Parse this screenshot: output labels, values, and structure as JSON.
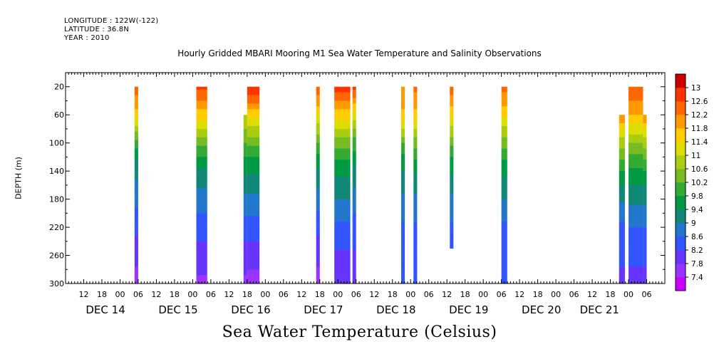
{
  "header": {
    "longitude": "LONGITUDE : 122W(-122)",
    "latitude": "LATITUDE : 36.8N",
    "year": "YEAR : 2010"
  },
  "chart_data": {
    "type": "heatmap",
    "title": "Hourly Gridded MBARI Mooring M1 Sea Water Temperature and Salinity Observations",
    "xlabel": "",
    "ylabel": "DEPTH (m)",
    "colorbar_label": "Sea Water Temperature (Celsius)",
    "y_axis": {
      "range": [
        0,
        300
      ],
      "inverted": true,
      "ticks": [
        20,
        60,
        100,
        140,
        180,
        220,
        260,
        300
      ]
    },
    "x_axis": {
      "start": "DEC 13 06:00",
      "end": "DEC 21 12:00",
      "hour_ticks": [
        {
          "day": 13.5,
          "label": "12"
        },
        {
          "day": 13.75,
          "label": "18"
        },
        {
          "day": 14.0,
          "label": "00"
        },
        {
          "day": 14.25,
          "label": "06"
        },
        {
          "day": 14.5,
          "label": "12"
        },
        {
          "day": 14.75,
          "label": "18"
        },
        {
          "day": 15.0,
          "label": "00"
        },
        {
          "day": 15.25,
          "label": "06"
        },
        {
          "day": 15.5,
          "label": "12"
        },
        {
          "day": 15.75,
          "label": "18"
        },
        {
          "day": 16.0,
          "label": "00"
        },
        {
          "day": 16.25,
          "label": "06"
        },
        {
          "day": 16.5,
          "label": "12"
        },
        {
          "day": 16.75,
          "label": "18"
        },
        {
          "day": 17.0,
          "label": "00"
        },
        {
          "day": 17.25,
          "label": "06"
        },
        {
          "day": 17.5,
          "label": "12"
        },
        {
          "day": 17.75,
          "label": "18"
        },
        {
          "day": 18.0,
          "label": "00"
        },
        {
          "day": 18.25,
          "label": "06"
        },
        {
          "day": 18.5,
          "label": "12"
        },
        {
          "day": 18.75,
          "label": "18"
        },
        {
          "day": 19.0,
          "label": "00"
        },
        {
          "day": 19.25,
          "label": "06"
        },
        {
          "day": 19.5,
          "label": "12"
        },
        {
          "day": 19.75,
          "label": "18"
        },
        {
          "day": 20.0,
          "label": "00"
        },
        {
          "day": 20.25,
          "label": "06"
        },
        {
          "day": 20.5,
          "label": "12"
        },
        {
          "day": 20.75,
          "label": "18"
        },
        {
          "day": 21.0,
          "label": "00"
        },
        {
          "day": 21.25,
          "label": "06"
        }
      ],
      "day_labels": [
        {
          "day": 13.8,
          "label": "DEC 14"
        },
        {
          "day": 14.8,
          "label": "DEC 15"
        },
        {
          "day": 15.8,
          "label": "DEC 16"
        },
        {
          "day": 16.8,
          "label": "DEC 17"
        },
        {
          "day": 17.8,
          "label": "DEC 18"
        },
        {
          "day": 18.8,
          "label": "DEC 19"
        },
        {
          "day": 19.8,
          "label": "DEC 20"
        },
        {
          "day": 20.6,
          "label": "DEC 21"
        }
      ]
    },
    "colorbar": {
      "levels": [
        "7.4",
        "7.8",
        "8.2",
        "8.6",
        "9",
        "9.4",
        "9.8",
        "10.2",
        "10.6",
        "11",
        "11.4",
        "11.8",
        "12.2",
        "12.6",
        "13"
      ],
      "colors": [
        "#cc00ff",
        "#9933ff",
        "#6633ff",
        "#3355ff",
        "#2277cc",
        "#118877",
        "#009944",
        "#33aa33",
        "#77bb22",
        "#aacc11",
        "#dddd00",
        "#ffcc00",
        "#ff9900",
        "#ff6600",
        "#ff3300",
        "#cc0000"
      ]
    },
    "columns": [
      {
        "start": 14.2,
        "end": 14.25,
        "depth_top": 20,
        "depth_bottom": 300,
        "profile": [
          [
            20,
            12.4
          ],
          [
            40,
            12.0
          ],
          [
            60,
            11.6
          ],
          [
            80,
            10.8
          ],
          [
            100,
            10.0
          ],
          [
            130,
            9.2
          ],
          [
            170,
            8.8
          ],
          [
            210,
            8.4
          ],
          [
            250,
            8.0
          ],
          [
            300,
            7.6
          ]
        ]
      },
      {
        "start": 15.05,
        "end": 15.2,
        "depth_top": 20,
        "depth_bottom": 300,
        "profile": [
          [
            20,
            12.7
          ],
          [
            40,
            12.2
          ],
          [
            60,
            11.6
          ],
          [
            80,
            11.0
          ],
          [
            100,
            10.3
          ],
          [
            130,
            9.5
          ],
          [
            170,
            8.9
          ],
          [
            210,
            8.5
          ],
          [
            250,
            8.1
          ],
          [
            300,
            7.7
          ]
        ]
      },
      {
        "start": 15.7,
        "end": 15.75,
        "depth_top": 60,
        "depth_bottom": 300,
        "profile": [
          [
            60,
            11.0
          ],
          [
            80,
            10.6
          ],
          [
            100,
            10.2
          ],
          [
            130,
            9.6
          ],
          [
            170,
            9.0
          ],
          [
            210,
            8.5
          ],
          [
            250,
            8.1
          ],
          [
            300,
            7.7
          ]
        ]
      },
      {
        "start": 15.75,
        "end": 15.92,
        "depth_top": 20,
        "depth_bottom": 300,
        "profile": [
          [
            20,
            13.0
          ],
          [
            40,
            12.3
          ],
          [
            60,
            11.5
          ],
          [
            80,
            10.9
          ],
          [
            100,
            10.3
          ],
          [
            130,
            9.6
          ],
          [
            170,
            9.0
          ],
          [
            210,
            8.5
          ],
          [
            250,
            8.1
          ],
          [
            300,
            7.6
          ]
        ]
      },
      {
        "start": 16.7,
        "end": 16.75,
        "depth_top": 20,
        "depth_bottom": 300,
        "profile": [
          [
            20,
            12.5
          ],
          [
            40,
            12.0
          ],
          [
            60,
            11.4
          ],
          [
            80,
            10.8
          ],
          [
            100,
            10.2
          ],
          [
            130,
            9.5
          ],
          [
            170,
            8.9
          ],
          [
            210,
            8.4
          ],
          [
            250,
            8.0
          ],
          [
            300,
            7.6
          ]
        ]
      },
      {
        "start": 16.95,
        "end": 17.17,
        "depth_top": 20,
        "depth_bottom": 300,
        "profile": [
          [
            20,
            12.8
          ],
          [
            40,
            12.2
          ],
          [
            60,
            11.6
          ],
          [
            80,
            11.0
          ],
          [
            100,
            10.4
          ],
          [
            130,
            9.7
          ],
          [
            170,
            9.1
          ],
          [
            210,
            8.6
          ],
          [
            250,
            8.2
          ],
          [
            300,
            8.0
          ]
        ]
      },
      {
        "start": 17.2,
        "end": 17.25,
        "depth_top": 20,
        "depth_bottom": 300,
        "profile": [
          [
            20,
            12.8
          ],
          [
            40,
            12.0
          ],
          [
            60,
            11.2
          ],
          [
            80,
            10.6
          ],
          [
            100,
            10.0
          ],
          [
            130,
            9.4
          ],
          [
            170,
            8.9
          ],
          [
            210,
            8.5
          ],
          [
            250,
            8.2
          ],
          [
            300,
            8.1
          ]
        ]
      },
      {
        "start": 17.87,
        "end": 17.92,
        "depth_top": 20,
        "depth_bottom": 300,
        "profile": [
          [
            20,
            12.2
          ],
          [
            40,
            12.0
          ],
          [
            60,
            11.6
          ],
          [
            80,
            11.0
          ],
          [
            100,
            10.2
          ],
          [
            130,
            9.5
          ],
          [
            170,
            9.0
          ],
          [
            210,
            8.6
          ],
          [
            250,
            8.3
          ],
          [
            300,
            8.2
          ]
        ]
      },
      {
        "start": 18.04,
        "end": 18.09,
        "depth_top": 20,
        "depth_bottom": 300,
        "profile": [
          [
            20,
            12.3
          ],
          [
            40,
            12.0
          ],
          [
            60,
            11.6
          ],
          [
            80,
            11.0
          ],
          [
            100,
            10.4
          ],
          [
            130,
            9.6
          ],
          [
            170,
            9.0
          ],
          [
            210,
            8.6
          ],
          [
            250,
            8.3
          ],
          [
            300,
            8.2
          ]
        ]
      },
      {
        "start": 18.54,
        "end": 18.59,
        "depth_top": 20,
        "depth_bottom": 250,
        "profile": [
          [
            20,
            12.4
          ],
          [
            40,
            12.0
          ],
          [
            60,
            11.5
          ],
          [
            80,
            10.9
          ],
          [
            100,
            10.3
          ],
          [
            130,
            9.6
          ],
          [
            170,
            9.0
          ],
          [
            210,
            8.6
          ],
          [
            250,
            8.3
          ]
        ]
      },
      {
        "start": 19.25,
        "end": 19.33,
        "depth_top": 20,
        "depth_bottom": 300,
        "profile": [
          [
            20,
            12.3
          ],
          [
            40,
            12.0
          ],
          [
            60,
            11.5
          ],
          [
            80,
            10.9
          ],
          [
            100,
            10.4
          ],
          [
            130,
            9.7
          ],
          [
            170,
            9.1
          ],
          [
            210,
            8.6
          ],
          [
            250,
            8.3
          ],
          [
            300,
            8.2
          ]
        ]
      },
      {
        "start": 20.87,
        "end": 20.95,
        "depth_top": 60,
        "depth_bottom": 300,
        "profile": [
          [
            60,
            12.2
          ],
          [
            80,
            11.4
          ],
          [
            100,
            10.8
          ],
          [
            130,
            10.0
          ],
          [
            170,
            9.2
          ],
          [
            210,
            8.6
          ],
          [
            250,
            8.3
          ],
          [
            300,
            8.1
          ]
        ]
      },
      {
        "start": 21.0,
        "end": 21.2,
        "depth_top": 20,
        "depth_bottom": 300,
        "profile": [
          [
            20,
            12.4
          ],
          [
            40,
            12.2
          ],
          [
            60,
            11.8
          ],
          [
            80,
            11.2
          ],
          [
            100,
            10.6
          ],
          [
            130,
            9.9
          ],
          [
            170,
            9.2
          ],
          [
            210,
            8.7
          ],
          [
            250,
            8.3
          ],
          [
            300,
            8.1
          ]
        ]
      },
      {
        "start": 21.2,
        "end": 21.25,
        "depth_top": 60,
        "depth_bottom": 300,
        "profile": [
          [
            60,
            12.2
          ],
          [
            80,
            11.4
          ],
          [
            100,
            10.8
          ],
          [
            130,
            10.0
          ],
          [
            170,
            9.2
          ],
          [
            210,
            8.7
          ],
          [
            250,
            8.3
          ],
          [
            300,
            8.1
          ]
        ]
      }
    ]
  }
}
